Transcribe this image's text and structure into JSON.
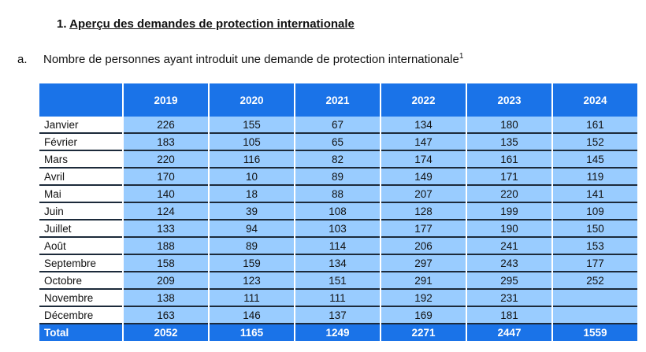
{
  "heading": {
    "number": "1.",
    "text": "Aperçu des demandes de protection internationale"
  },
  "subheading": {
    "letter": "a.",
    "text": "Nombre de personnes ayant introduit une demande de protection internationale",
    "footnote": "1"
  },
  "table": {
    "header_color": "#1a73e8",
    "cell_color": "#99ccff",
    "columns": [
      "",
      "2019",
      "2020",
      "2021",
      "2022",
      "2023",
      "2024"
    ],
    "rows": [
      {
        "label": "Janvier",
        "values": [
          "226",
          "155",
          "67",
          "134",
          "180",
          "161"
        ]
      },
      {
        "label": "Février",
        "values": [
          "183",
          "105",
          "65",
          "147",
          "135",
          "152"
        ]
      },
      {
        "label": "Mars",
        "values": [
          "220",
          "116",
          "82",
          "174",
          "161",
          "145"
        ]
      },
      {
        "label": "Avril",
        "values": [
          "170",
          "10",
          "89",
          "149",
          "171",
          "119"
        ]
      },
      {
        "label": "Mai",
        "values": [
          "140",
          "18",
          "88",
          "207",
          "220",
          "141"
        ]
      },
      {
        "label": "Juin",
        "values": [
          "124",
          "39",
          "108",
          "128",
          "199",
          "109"
        ]
      },
      {
        "label": "Juillet",
        "values": [
          "133",
          "94",
          "103",
          "177",
          "190",
          "150"
        ]
      },
      {
        "label": "Août",
        "values": [
          "188",
          "89",
          "114",
          "206",
          "241",
          "153"
        ]
      },
      {
        "label": "Septembre",
        "values": [
          "158",
          "159",
          "134",
          "297",
          "243",
          "177"
        ]
      },
      {
        "label": "Octobre",
        "values": [
          "209",
          "123",
          "151",
          "291",
          "295",
          "252"
        ]
      },
      {
        "label": "Novembre",
        "values": [
          "138",
          "111",
          "111",
          "192",
          "231",
          ""
        ]
      },
      {
        "label": "Décembre",
        "values": [
          "163",
          "146",
          "137",
          "169",
          "181",
          ""
        ]
      }
    ],
    "total": {
      "label": "Total",
      "values": [
        "2052",
        "1165",
        "1249",
        "2271",
        "2447",
        "1559"
      ]
    }
  }
}
